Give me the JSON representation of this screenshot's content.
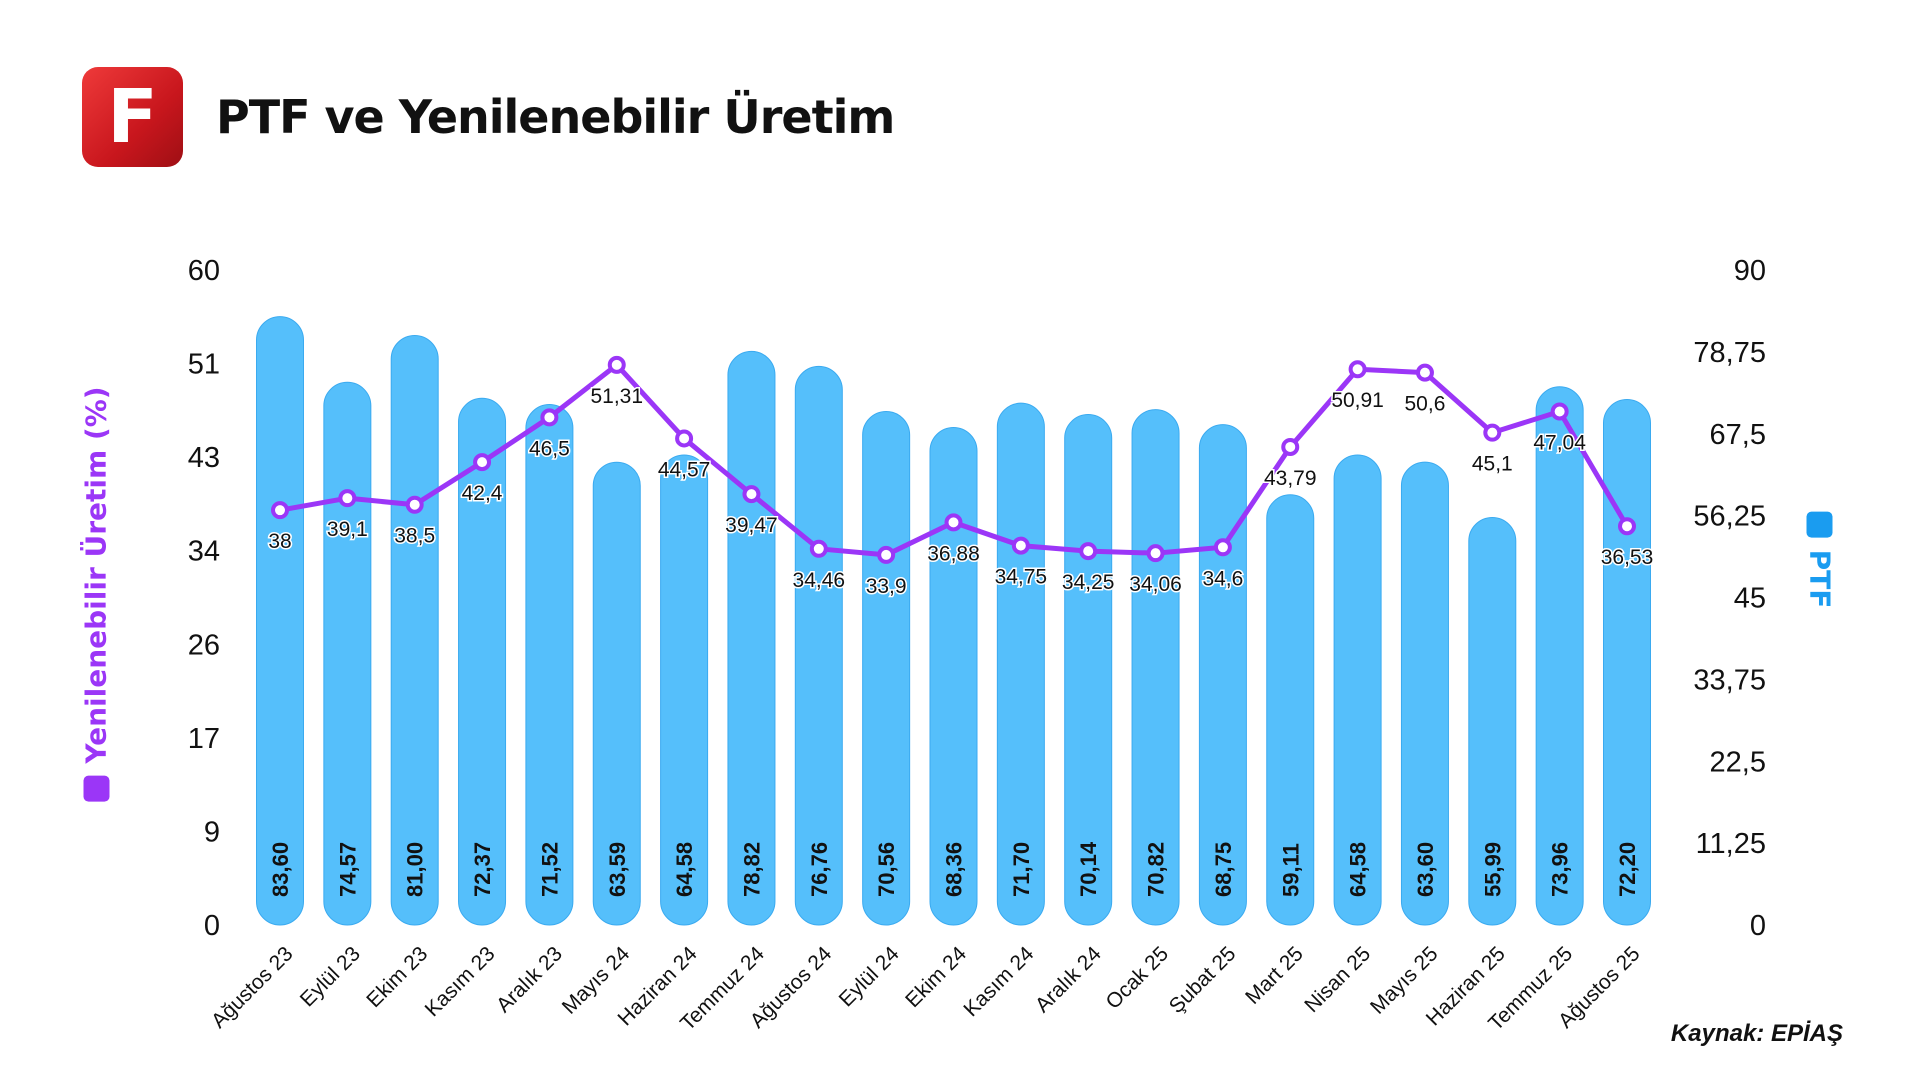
{
  "header": {
    "logo_letter": "F",
    "title": "PTF ve Yenilenebilir Üretim"
  },
  "source": "Kaynak: EPİAŞ",
  "colors": {
    "bar": "#55bffb",
    "bar_stroke": "#3aaaf0",
    "line": "#9b36f7",
    "ptf_legend": "#1a9cf0"
  },
  "chart_data": {
    "type": "bar+line",
    "title": "PTF ve Yenilenebilir Üretim",
    "categories": [
      "Ağustos 23",
      "Eylül 23",
      "Ekim 23",
      "Kasım 23",
      "Aralık 23",
      "Mayıs 24",
      "Haziran 24",
      "Temmuz 24",
      "Ağustos 24",
      "Eylül 24",
      "Ekim 24",
      "Kasım 24",
      "Aralık 24",
      "Ocak 25",
      "Şubat 25",
      "Mart 25",
      "Nisan 25",
      "Mayıs 25",
      "Haziran 25",
      "Temmuz 25",
      "Ağustos 25"
    ],
    "left_axis": {
      "label": "Yenilenebilir Üretim (%)",
      "ticks": [
        "0",
        "9",
        "17",
        "26",
        "34",
        "43",
        "51",
        "60"
      ],
      "ylim": [
        0,
        60
      ]
    },
    "right_axis": {
      "label": "PTF",
      "ticks": [
        "0",
        "11,25",
        "22,5",
        "33,75",
        "45",
        "56,25",
        "67,5",
        "78,75",
        "90"
      ],
      "ylim": [
        0,
        90
      ]
    },
    "series": [
      {
        "name": "PTF",
        "type": "bar",
        "axis": "right",
        "values": [
          83.6,
          74.57,
          81.0,
          72.37,
          71.52,
          63.59,
          64.58,
          78.82,
          76.76,
          70.56,
          68.36,
          71.7,
          70.14,
          70.82,
          68.75,
          59.11,
          64.58,
          63.6,
          55.99,
          73.96,
          72.2
        ],
        "labels": [
          "83,60",
          "74,57",
          "81,00",
          "72,37",
          "71,52",
          "63,59",
          "64,58",
          "78,82",
          "76,76",
          "70,56",
          "68,36",
          "71,70",
          "70,14",
          "70,82",
          "68,75",
          "59,11",
          "64,58",
          "63,60",
          "55,99",
          "73,96",
          "72,20"
        ]
      },
      {
        "name": "Yenilenebilir Üretim (%)",
        "type": "line",
        "axis": "left",
        "values": [
          38,
          39.1,
          38.5,
          42.4,
          46.5,
          51.31,
          44.57,
          39.47,
          34.46,
          33.9,
          36.88,
          34.75,
          34.25,
          34.06,
          34.6,
          43.79,
          50.91,
          50.6,
          45.1,
          47.04,
          36.53
        ],
        "labels": [
          "38",
          "39,1",
          "38,5",
          "42,4",
          "46,5",
          "51,31",
          "44,57",
          "39,47",
          "34,46",
          "33,9",
          "36,88",
          "34,75",
          "34,25",
          "34,06",
          "34,6",
          "43,79",
          "50,91",
          "50,6",
          "45,1",
          "47,04",
          "36,53"
        ]
      }
    ]
  }
}
